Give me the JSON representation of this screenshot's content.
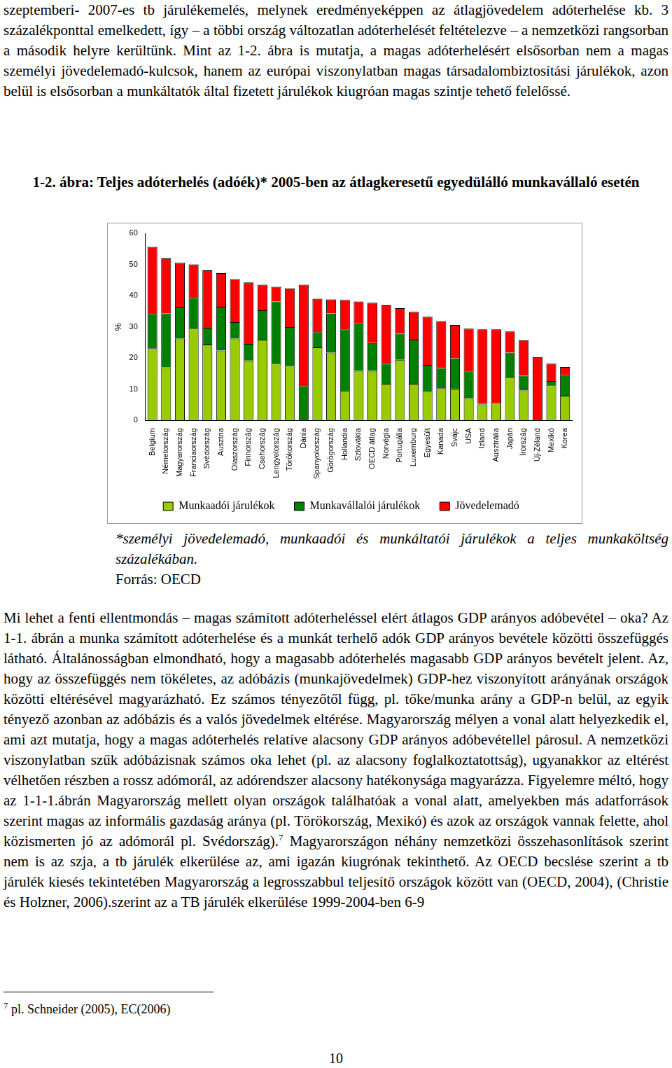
{
  "document": {
    "paragraph_top": "szeptemberi- 2007-es tb járulékemelés, melynek eredményeképpen az átlagjövedelem adóterhelése kb. 3 százalékponttal emelkedett, így – a többi ország változatlan adóterhelését feltételezve – a nemzetközi rangsorban a második helyre kerültünk. Mint az 1-2. ábra is mutatja, a magas adóterhelésért elsősorban nem a magas személyi jövedelemadó-kulcsok, hanem az európai viszonylatban magas társadalombiztosítási járulékok, azon belül is elsősorban a munkáltatók által fizetett járulékok kiugróan magas szintje tehető felelőssé.",
    "figure_caption": "1-2. ábra: Teljes adóterhelés (adóék)* 2005-ben az átlagkeresetű egyedülálló munkavállaló esetén",
    "figure_note": "*személyi jövedelemadó, munkaadói és munkáltatói járulékok a teljes munkaköltség százalékában.",
    "figure_source": "Forrás: OECD",
    "paragraph_bottom": {
      "before": "Mi lehet a fenti ellentmondás – magas számított adóterheléssel elért átlagos GDP arányos adóbevétel – oka? Az 1-1. ábrán a munka számított adóterhelése és a munkát terhelő adók GDP arányos bevétele közötti összefüggés látható. Általánosságban elmondható, hogy a magasabb adóterhelés magasabb GDP arányos bevételt jelent. Az, hogy az összefüggés nem tökéletes, az adóbázis (munkajövedelmek) GDP-hez viszonyított arányának országok közötti eltérésével magyarázható. Ez számos tényezőtől függ, pl. tőke/munka arány a GDP-n belül, az egyik tényező azonban az adóbázis és a valós jövedelmek eltérése. Magyarország mélyen a vonal alatt helyezkedik el, ami azt mutatja, hogy a magas adóterhelés relatíve alacsony GDP arányos adóbevétellel párosul. A nemzetközi viszonylatban szűk adóbázisnak számos oka lehet (pl. az alacsony foglalkoztatottság), ugyanakkor az eltérést vélhetően részben a rossz adómorál, az adórendszer alacsony hatékonysága magyarázza. Figyelemre méltó, hogy az 1-1-1.ábrán Magyarország mellett olyan országok találhatóak a vonal alatt, amelyekben más adatforrások szerint magas az informális gazdaság aránya (pl. Törökország, Mexikó) és azok az országok vannak felette, ahol közismerten jó az adómorál pl. Svédország).",
      "footnote_mark": "7",
      "after": " Magyarországon néhány nemzetközi összehasonlítások szerint nem is az szja, a tb járulék elkerülése az, ami igazán kiugrónak tekinthető.  Az OECD becslése szerint a tb járulék kiesés tekintetében Magyarország a legrosszabbul teljesítő országok között van (OECD, 2004), (Christie és Holzner, 2006).szerint az a TB járulék elkerülése 1999-2004-ben 6-9"
    },
    "footnote": {
      "mark": "7",
      "text": " pl. Schneider (2005), EC(2006)"
    },
    "page_number": "10"
  },
  "chart_data": {
    "type": "bar",
    "stacked": true,
    "grid": false,
    "legend": "bottom",
    "y_label": "%",
    "ylim": [
      0,
      60
    ],
    "yticks": [
      0,
      10,
      20,
      30,
      40,
      50,
      60
    ],
    "categories": [
      "Belgium",
      "Németország",
      "Magyarország",
      "Franciaország",
      "Svédország",
      "Ausztria",
      "Olaszország",
      "Finnország",
      "Csehország",
      "Lengyelország",
      "Törökország",
      "Dánia",
      "Spanyolország",
      "Görögország",
      "Hollandia",
      "Szlovákia",
      "OECD átlag",
      "Norvégia",
      "Portugália",
      "Luxemburg",
      "Egyesült",
      "Kanada",
      "Svájc",
      "USA",
      "Izland",
      "Ausztrália",
      "Japán",
      "Írország",
      "Új-Zéland",
      "Mexikó",
      "Korea"
    ],
    "series": [
      {
        "name": "Munkaadói járulékok",
        "color": "#99cc00",
        "values": [
          23.1,
          17.0,
          26.2,
          29.4,
          24.3,
          22.4,
          26.2,
          19.2,
          25.9,
          18.2,
          17.5,
          0.5,
          23.4,
          21.7,
          9.3,
          15.9,
          15.9,
          11.7,
          19.4,
          11.7,
          9.3,
          10.3,
          10.0,
          7.2,
          5.1,
          5.6,
          14.0,
          9.6,
          0,
          11.2,
          7.9
        ]
      },
      {
        "name": "Munkavállalói járulékok",
        "color": "#008000",
        "values": [
          11.0,
          17.3,
          10.0,
          9.9,
          5.4,
          14.0,
          5.3,
          5.3,
          9.4,
          19.9,
          12.4,
          10.5,
          4.9,
          12.6,
          19.9,
          15.2,
          8.9,
          6.5,
          8.4,
          14.2,
          8.5,
          6.5,
          9.9,
          8.5,
          0.3,
          0,
          7.7,
          4.7,
          0,
          1.4,
          6.6
        ]
      },
      {
        "name": "Jövedelemadó",
        "color": "#ff0000",
        "values": [
          21.5,
          17.6,
          14.3,
          10.7,
          18.4,
          10.8,
          13.8,
          19.7,
          8.2,
          4.7,
          12.4,
          32.5,
          10.7,
          4.5,
          9.4,
          7.0,
          12.9,
          18.7,
          8.2,
          8.9,
          15.4,
          15.0,
          10.7,
          13.7,
          23.8,
          23.6,
          6.8,
          11.4,
          20.3,
          5.6,
          2.6
        ]
      }
    ]
  }
}
